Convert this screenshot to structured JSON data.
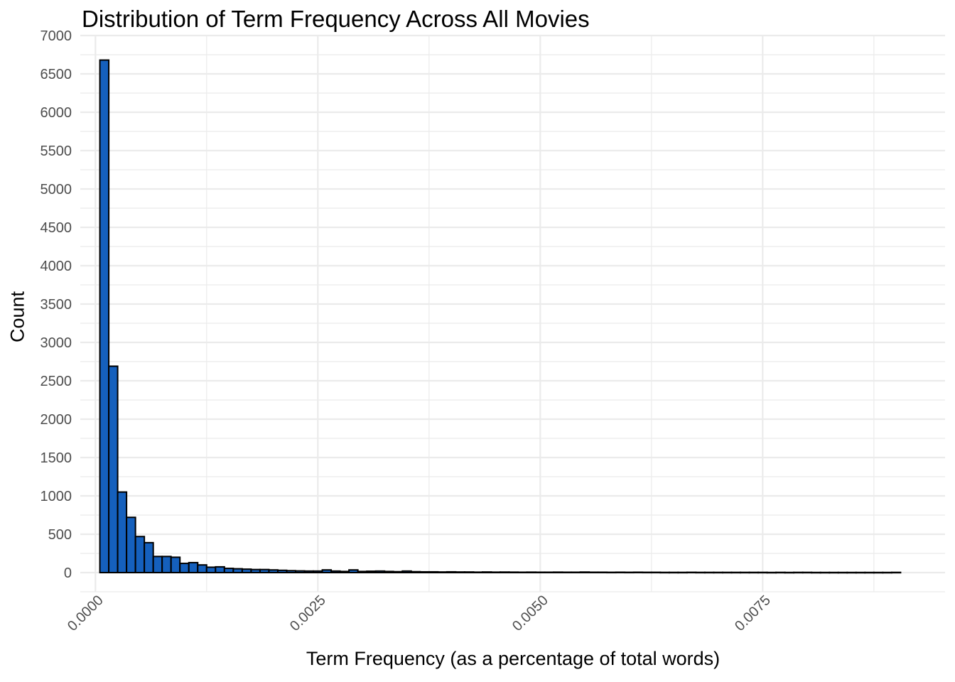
{
  "chart_data": {
    "type": "bar",
    "title": "Distribution of Term Frequency Across All Movies",
    "xlabel": "Term Frequency (as a percentage of total words)",
    "ylabel": "Count",
    "xlim": [
      -0.00017,
      0.00955
    ],
    "ylim": [
      -250,
      7000
    ],
    "x_ticks": [
      "0.0000",
      "0.0025",
      "0.0050",
      "0.0075"
    ],
    "x_tick_values": [
      0,
      0.0025,
      0.005,
      0.0075
    ],
    "y_ticks": [
      "0",
      "500",
      "1000",
      "1500",
      "2000",
      "2500",
      "3000",
      "3500",
      "4000",
      "4500",
      "5000",
      "5500",
      "6000",
      "6500",
      "7000"
    ],
    "y_tick_values": [
      0,
      500,
      1000,
      1500,
      2000,
      2500,
      3000,
      3500,
      4000,
      4500,
      5000,
      5500,
      6000,
      6500,
      7000
    ],
    "grid": true,
    "bin_start": 5e-05,
    "bin_width": 0.0001,
    "values": [
      6680,
      2690,
      1050,
      720,
      470,
      390,
      210,
      210,
      200,
      120,
      130,
      100,
      70,
      75,
      55,
      50,
      45,
      40,
      40,
      35,
      30,
      25,
      22,
      20,
      20,
      35,
      20,
      15,
      35,
      15,
      18,
      20,
      15,
      12,
      20,
      12,
      10,
      10,
      8,
      10,
      8,
      8,
      6,
      8,
      6,
      7,
      6,
      5,
      6,
      5,
      5,
      6,
      5,
      5,
      7,
      5,
      5,
      4,
      5,
      4,
      5,
      4,
      4,
      3,
      3,
      3,
      4,
      3,
      3,
      3,
      3,
      3,
      3,
      3,
      3,
      2,
      3,
      2,
      3,
      3,
      2,
      2,
      2,
      2,
      2,
      2,
      2,
      2,
      2,
      3
    ],
    "colors": {
      "fill": "#1560bd",
      "stroke": "#000000",
      "grid": "#ebebeb"
    }
  }
}
